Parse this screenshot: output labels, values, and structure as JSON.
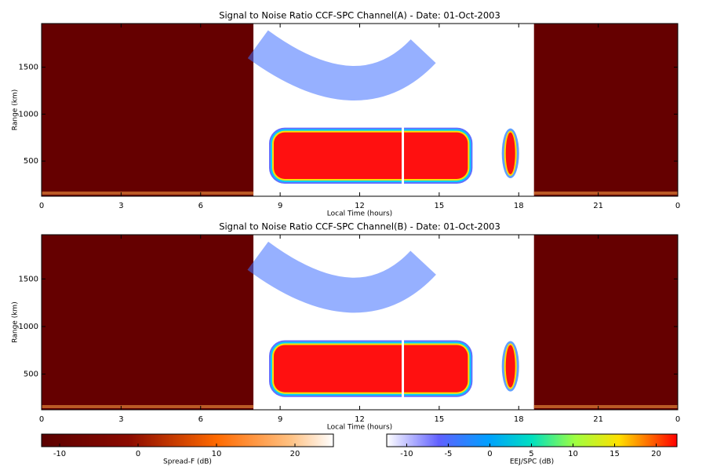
{
  "chart_data": [
    {
      "type": "heatmap",
      "title": "Signal to Noise Ratio CCF-SPC Channel(A) - Date: 01-Oct-2003",
      "x_label": "Local Time (hours)",
      "y_label": "Range (km)",
      "xlim": [
        0,
        24
      ],
      "xticks": [
        0,
        3,
        6,
        9,
        12,
        15,
        18,
        21,
        {
          "value": 24,
          "label": "0"
        }
      ],
      "ylim": [
        125,
        1965
      ],
      "yticks": [
        500,
        1000,
        1500
      ]
    },
    {
      "type": "heatmap",
      "title": "Signal to Noise Ratio CCF-SPC Channel(B) - Date: 01-Oct-2003",
      "x_label": "Local Time (hours)",
      "y_label": "Range (km)",
      "xlim": [
        0,
        24
      ],
      "xticks": [
        0,
        3,
        6,
        9,
        12,
        15,
        18,
        21,
        {
          "value": 24,
          "label": "0"
        }
      ],
      "ylim": [
        125,
        1965
      ],
      "yticks": [
        500,
        1000,
        1500
      ]
    },
    {
      "type": "colorbar",
      "label": "Spread-F (dB)",
      "xlim": [
        -12.3,
        24.9
      ],
      "xticks": [
        -10,
        0,
        10,
        20
      ]
    },
    {
      "type": "colorbar",
      "label": "EEJ/SPC (dB)",
      "xlim": [
        -12.4,
        22.5
      ],
      "xticks": [
        -10,
        -5,
        0,
        5,
        10,
        15,
        20
      ]
    }
  ]
}
